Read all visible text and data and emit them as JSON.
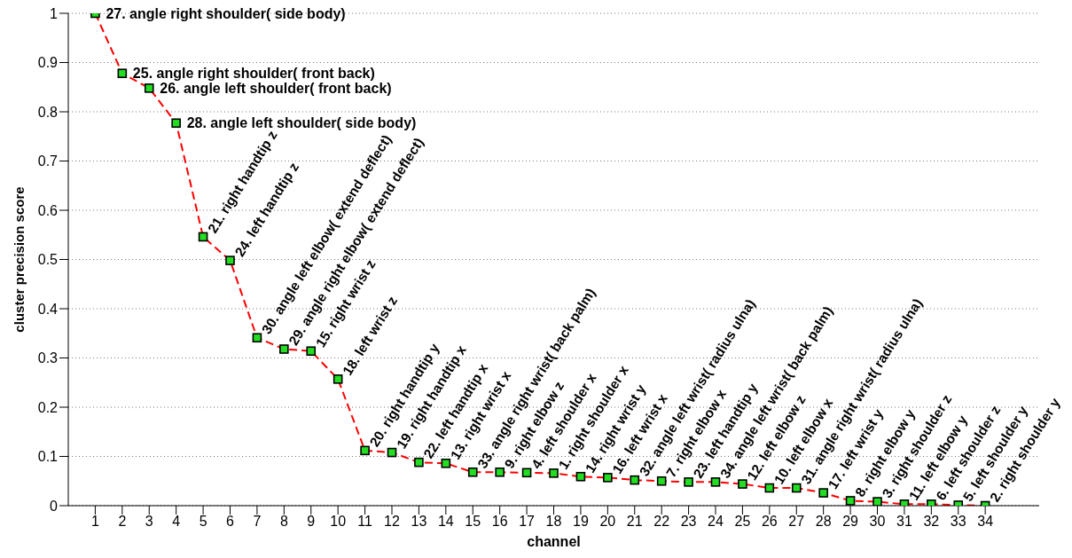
{
  "chart_data": {
    "type": "line",
    "xlabel": "channel",
    "ylabel": "cluster precision score",
    "x": [
      1,
      2,
      3,
      4,
      5,
      6,
      7,
      8,
      9,
      10,
      11,
      12,
      13,
      14,
      15,
      16,
      17,
      18,
      19,
      20,
      21,
      22,
      23,
      24,
      25,
      26,
      27,
      28,
      29,
      30,
      31,
      32,
      33,
      34
    ],
    "series": [
      {
        "color": "#ff0000",
        "values": [
          1.0,
          0.878,
          0.848,
          0.777,
          0.546,
          0.498,
          0.341,
          0.318,
          0.314,
          0.257,
          0.112,
          0.108,
          0.088,
          0.086,
          0.068,
          0.068,
          0.067,
          0.066,
          0.059,
          0.057,
          0.052,
          0.05,
          0.048,
          0.048,
          0.044,
          0.036,
          0.036,
          0.026,
          0.01,
          0.008,
          0.003,
          0.003,
          0.001,
          0.0
        ]
      }
    ],
    "xlim": [
      0,
      36
    ],
    "xticks": [
      1,
      2,
      3,
      4,
      5,
      6,
      7,
      8,
      9,
      10,
      11,
      12,
      13,
      14,
      15,
      16,
      17,
      18,
      19,
      20,
      21,
      22,
      23,
      24,
      25,
      26,
      27,
      28,
      29,
      30,
      31,
      32,
      33,
      34
    ],
    "ylim": [
      0,
      1
    ],
    "yticks": [
      0,
      0.1,
      0.2,
      0.3,
      0.4,
      0.5,
      0.6,
      0.7,
      0.8,
      0.9,
      1
    ],
    "grid": "y",
    "marker": "square",
    "line_style": "dashed",
    "annotations": [
      {
        "text": "27. angle right shoulder( side body)",
        "x": 1,
        "y": 1.0
      },
      {
        "text": "25. angle right shoulder( front back)",
        "x": 2,
        "y": 0.878
      },
      {
        "text": "26. angle left shoulder( front back)",
        "x": 3,
        "y": 0.848
      },
      {
        "text": "28. angle left shoulder( side body)",
        "x": 4,
        "y": 0.777
      },
      {
        "text": "21. right handtip z",
        "x": 5,
        "y": 0.546
      },
      {
        "text": "24. left handtip z",
        "x": 6,
        "y": 0.498
      },
      {
        "text": "30. angle left elbow( extend deflect)",
        "x": 7,
        "y": 0.341
      },
      {
        "text": "29. angle right elbow( extend deflect)",
        "x": 8,
        "y": 0.318
      },
      {
        "text": "15. right wrist z",
        "x": 9,
        "y": 0.314
      },
      {
        "text": "18. left wrist z",
        "x": 10,
        "y": 0.257
      },
      {
        "text": "20. right handtip y",
        "x": 11,
        "y": 0.112
      },
      {
        "text": "19. right handtip x",
        "x": 12,
        "y": 0.108
      },
      {
        "text": "22. left handtip x",
        "x": 13,
        "y": 0.088
      },
      {
        "text": "13. right wrist x",
        "x": 14,
        "y": 0.086
      },
      {
        "text": "33. angle right wrist( back palm)",
        "x": 15,
        "y": 0.068
      },
      {
        "text": "9. right elbow z",
        "x": 16,
        "y": 0.068
      },
      {
        "text": "4. left shoulder x",
        "x": 17,
        "y": 0.067
      },
      {
        "text": "1. right shoulder x",
        "x": 18,
        "y": 0.066
      },
      {
        "text": "14. right wrist y",
        "x": 19,
        "y": 0.059
      },
      {
        "text": "16. left wrist x",
        "x": 20,
        "y": 0.057
      },
      {
        "text": "32. angle left wrist( radius ulna)",
        "x": 21,
        "y": 0.052
      },
      {
        "text": "7. right elbow x",
        "x": 22,
        "y": 0.05
      },
      {
        "text": "23. left handtip y",
        "x": 23,
        "y": 0.048
      },
      {
        "text": "34. angle left wrist( back palm)",
        "x": 24,
        "y": 0.048
      },
      {
        "text": "12. left elbow z",
        "x": 25,
        "y": 0.044
      },
      {
        "text": "10. left elbow x",
        "x": 26,
        "y": 0.036
      },
      {
        "text": "31. angle right wrist( radius ulna)",
        "x": 27,
        "y": 0.036
      },
      {
        "text": "17. left wrist y",
        "x": 28,
        "y": 0.026
      },
      {
        "text": "8. right elbow y",
        "x": 29,
        "y": 0.01
      },
      {
        "text": "3. right shoulder z",
        "x": 30,
        "y": 0.008
      },
      {
        "text": "11. left elbow y",
        "x": 31,
        "y": 0.003
      },
      {
        "text": "6. left shoulder z",
        "x": 32,
        "y": 0.003
      },
      {
        "text": "5. left shoulder y",
        "x": 33,
        "y": 0.001
      },
      {
        "text": "2. right shoulder y",
        "x": 34,
        "y": 0.0
      }
    ]
  }
}
